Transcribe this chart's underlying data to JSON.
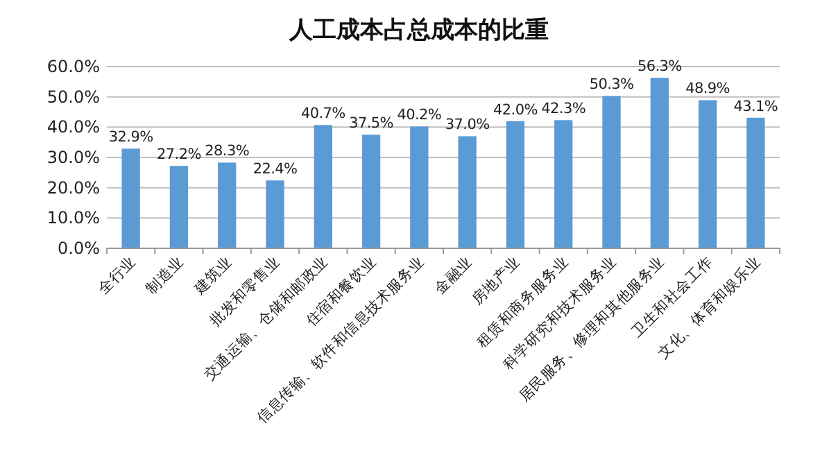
{
  "chart_data": {
    "type": "bar",
    "title": "人工成本占总成本的比重",
    "categories": [
      "全行业",
      "制造业",
      "建筑业",
      "批发和零售业",
      "交通运输、仓储和邮政业",
      "住宿和餐饮业",
      "信息传输、软件和信息技术服务业",
      "金融业",
      "房地产业",
      "租赁和商务服务业",
      "科学研究和技术服务业",
      "居民服务、修理和其他服务业",
      "卫生和社会工作",
      "文化、体育和娱乐业"
    ],
    "values": [
      32.9,
      27.2,
      28.3,
      22.4,
      40.7,
      37.5,
      40.2,
      37.0,
      42.0,
      42.3,
      50.3,
      56.3,
      48.9,
      43.1
    ],
    "value_labels": [
      "32.9%",
      "27.2%",
      "28.3%",
      "22.4%",
      "40.7%",
      "37.5%",
      "40.2%",
      "37.0%",
      "42.0%",
      "42.3%",
      "50.3%",
      "56.3%",
      "48.9%",
      "43.1%"
    ],
    "color": "#5b9bd5",
    "ylim": [
      0,
      60
    ],
    "yticks": [
      {
        "value": 0,
        "label": "0.0%"
      },
      {
        "value": 10,
        "label": "10.0%"
      },
      {
        "value": 20,
        "label": "20.0%"
      },
      {
        "value": 30,
        "label": "30.0%"
      },
      {
        "value": 40,
        "label": "40.0%"
      },
      {
        "value": 50,
        "label": "50.0%"
      },
      {
        "value": 60,
        "label": "60.0%"
      }
    ],
    "grid": "y"
  }
}
